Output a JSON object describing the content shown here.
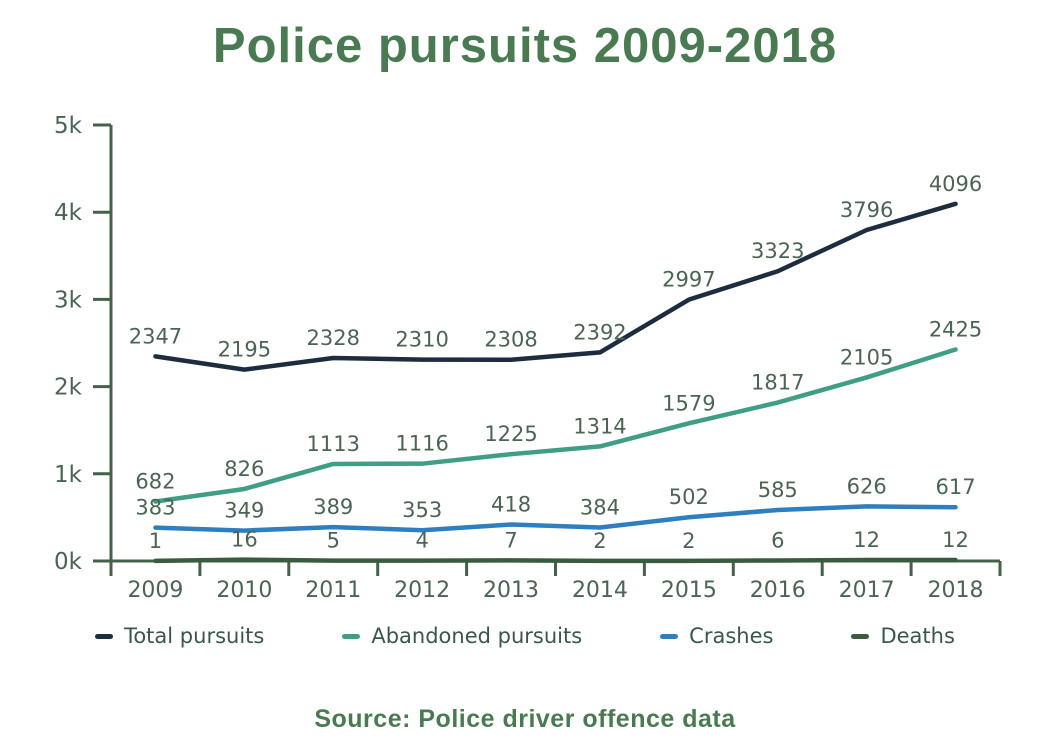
{
  "header": {
    "title": "Police pursuits 2009-2018"
  },
  "footer": {
    "source": "Source: Police driver offence data"
  },
  "colors": {
    "title": "#4a7a52",
    "source": "#4a7a52",
    "axis": "#44624a",
    "tick_label": "#4c6454",
    "data_label": "#4c6454",
    "legend_text": "#3c564c"
  },
  "chart_data": {
    "type": "line",
    "title": "Police pursuits 2009-2018",
    "categories": [
      "2009",
      "2010",
      "2011",
      "2012",
      "2013",
      "2014",
      "2015",
      "2016",
      "2017",
      "2018"
    ],
    "series": [
      {
        "name": "Total pursuits",
        "color": "#1d2d3f",
        "values": [
          2347,
          2195,
          2328,
          2310,
          2308,
          2392,
          2997,
          3323,
          3796,
          4096
        ]
      },
      {
        "name": "Abandoned pursuits",
        "color": "#3f9e85",
        "values": [
          682,
          826,
          1113,
          1116,
          1225,
          1314,
          1579,
          1817,
          2105,
          2425
        ]
      },
      {
        "name": "Crashes",
        "color": "#2e7fc0",
        "values": [
          383,
          349,
          389,
          353,
          418,
          384,
          502,
          585,
          626,
          617
        ]
      },
      {
        "name": "Deaths",
        "color": "#3a5c3e",
        "values": [
          1,
          16,
          5,
          4,
          7,
          2,
          2,
          6,
          12,
          12
        ]
      }
    ],
    "y_ticks": [
      {
        "value": 0,
        "label": "0k"
      },
      {
        "value": 1000,
        "label": "1k"
      },
      {
        "value": 2000,
        "label": "2k"
      },
      {
        "value": 3000,
        "label": "3k"
      },
      {
        "value": 4000,
        "label": "4k"
      },
      {
        "value": 5000,
        "label": "5k"
      }
    ],
    "ylim": [
      0,
      5000
    ],
    "xlabel": "",
    "ylabel": "",
    "grid": false,
    "legend_position": "bottom",
    "data_labels": true
  }
}
